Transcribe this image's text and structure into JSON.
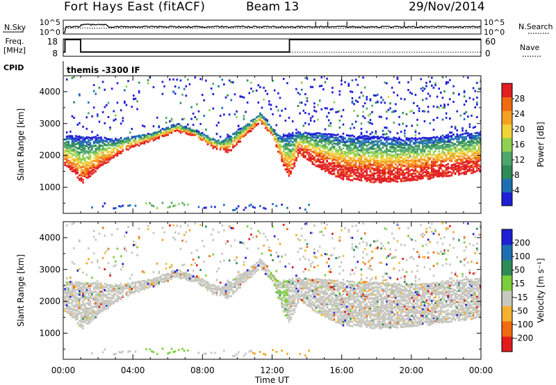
{
  "header": {
    "station": "Fort Hays East (fitACF)",
    "beam": "Beam 13",
    "date": "29/Nov/2014"
  },
  "chart_data": {
    "type": "heatmap",
    "x_axis": {
      "label": "Time UT",
      "range_hours": [
        0,
        24
      ],
      "ticks": [
        "00:00",
        "04:00",
        "08:00",
        "12:00",
        "16:00",
        "20:00",
        "00:00"
      ],
      "tick_hours": [
        0,
        4,
        8,
        12,
        16,
        20,
        24
      ]
    },
    "param_panels": {
      "nsky": {
        "label": "N.Sky",
        "ticks": [
          "10^5",
          "10^0"
        ],
        "right_label": "N.Search",
        "right_ticks": [
          "10^5",
          "10^0"
        ],
        "right_style": "dotted"
      },
      "freq": {
        "label_line1": "Freq.",
        "label_line2": "[MHz]",
        "ticks": [
          "18",
          "8"
        ],
        "right_label": "Nave",
        "right_ticks": [
          "60",
          "0"
        ],
        "right_style": "dotted",
        "freq_segments": [
          {
            "start": 0.0,
            "end": 0.1,
            "mhz": 10.5
          },
          {
            "start": 0.1,
            "end": 1.0,
            "mhz": 18.0
          },
          {
            "start": 1.0,
            "end": 13.0,
            "mhz": 10.5
          },
          {
            "start": 13.0,
            "end": 24.0,
            "mhz": 18.0
          }
        ],
        "nave_level": 14
      },
      "cpid": {
        "label": "CPID",
        "text": "themis -3300 IF"
      }
    },
    "power_panel": {
      "ylabel": "Slant Range [km]",
      "yticks": [
        "1000",
        "2000",
        "3000",
        "4000"
      ],
      "ytick_values": [
        1000,
        2000,
        3000,
        4000
      ],
      "yrange": [
        180,
        4500
      ],
      "colorbar": {
        "label": "Power [dB]",
        "range": [
          0,
          32
        ],
        "tick_labels": [
          "4",
          "8",
          "12",
          "16",
          "20",
          "24",
          "28"
        ],
        "tick_values": [
          4,
          8,
          12,
          16,
          20,
          24,
          28
        ],
        "colors": [
          "#1f1fd6",
          "#1e6fb2",
          "#2e8b57",
          "#4fa66a",
          "#8fd14f",
          "#f2d23a",
          "#f5a020",
          "#f06a10",
          "#e21e1e"
        ]
      }
    },
    "velocity_panel": {
      "ylabel": "Slant Range [km]",
      "yticks": [
        "1000",
        "2000",
        "3000",
        "4000"
      ],
      "ytick_values": [
        1000,
        2000,
        3000,
        4000
      ],
      "yrange": [
        180,
        4500
      ],
      "colorbar": {
        "label": "Velocity [m s⁻¹]",
        "range": [
          -250,
          250
        ],
        "tick_labels": [
          "200",
          "100",
          "50",
          "15",
          "-15",
          "-50",
          "-100",
          "-200"
        ],
        "colors": [
          "#e01c1c",
          "#f06a10",
          "#f5b030",
          "#c8c8c0",
          "#7ccd3a",
          "#2e8b57",
          "#1e6fb2",
          "#1f1fd6"
        ]
      }
    },
    "scatter_bands": [
      {
        "name": "main",
        "points": [
          [
            0.0,
            1750
          ],
          [
            0.6,
            1500
          ],
          [
            1.0,
            1150
          ],
          [
            2.0,
            1650
          ],
          [
            3.5,
            2200
          ],
          [
            5.0,
            2500
          ],
          [
            6.5,
            2800
          ],
          [
            7.5,
            2650
          ],
          [
            8.5,
            2300
          ],
          [
            9.5,
            2150
          ],
          [
            10.5,
            2700
          ],
          [
            11.3,
            3100
          ],
          [
            12.0,
            2600
          ],
          [
            12.6,
            1700
          ],
          [
            13.0,
            1350
          ],
          [
            13.5,
            2100
          ],
          [
            14.5,
            1700
          ],
          [
            16.0,
            1300
          ],
          [
            18.0,
            1200
          ],
          [
            20.0,
            1250
          ],
          [
            22.0,
            1400
          ],
          [
            24.0,
            1550
          ]
        ]
      },
      {
        "name": "upper",
        "points": [
          [
            0.0,
            2700
          ],
          [
            1.5,
            2650
          ],
          [
            3.0,
            2600
          ],
          [
            5.0,
            2750
          ],
          [
            6.5,
            3050
          ],
          [
            7.5,
            2850
          ],
          [
            9.0,
            2500
          ],
          [
            10.5,
            3050
          ],
          [
            11.3,
            3400
          ],
          [
            12.3,
            2700
          ],
          [
            13.5,
            2800
          ],
          [
            16.0,
            2700
          ],
          [
            20.0,
            2600
          ],
          [
            24.0,
            2800
          ]
        ]
      },
      {
        "name": "ground",
        "points": [
          [
            2.0,
            450
          ],
          [
            4.0,
            420
          ],
          [
            6.0,
            480
          ],
          [
            8.0,
            400
          ],
          [
            10.0,
            380
          ],
          [
            12.0,
            420
          ],
          [
            14.0,
            400
          ]
        ]
      }
    ]
  }
}
